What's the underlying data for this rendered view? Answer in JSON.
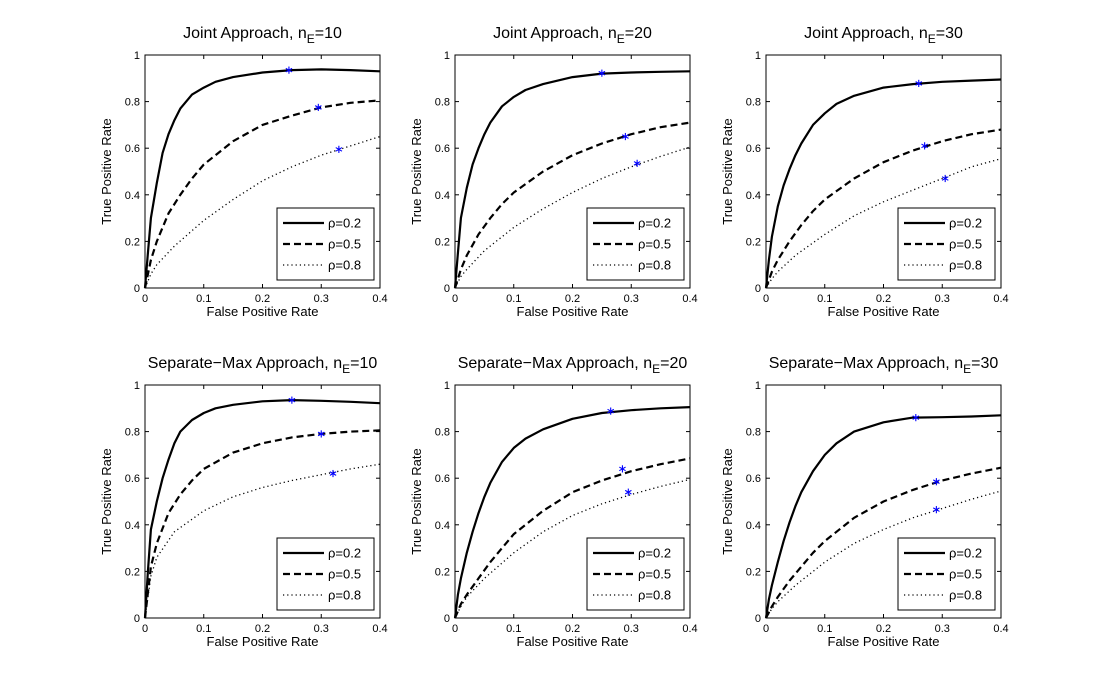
{
  "legend_entries": [
    "ρ=0.2",
    "ρ=0.5",
    "ρ=0.8"
  ],
  "series_colors": {
    "curve": "#000000",
    "marker": "#0000ff"
  },
  "chart_data": [
    {
      "type": "line",
      "title": {
        "main": "Joint Approach, n",
        "sub": "E",
        "suffix": "=10"
      },
      "xlabel": "False Positive Rate",
      "ylabel": "True Positive Rate",
      "xlim": [
        0,
        0.4
      ],
      "ylim": [
        0,
        1
      ],
      "xticks": [
        0,
        0.1,
        0.2,
        0.3,
        0.4
      ],
      "yticks": [
        0,
        0.2,
        0.4,
        0.6,
        0.8,
        1
      ],
      "legend": "bottom-right",
      "grid": false,
      "series": [
        {
          "name": "ρ=0.2",
          "style": "solid",
          "x": [
            0,
            0.005,
            0.01,
            0.02,
            0.03,
            0.04,
            0.05,
            0.06,
            0.08,
            0.1,
            0.12,
            0.15,
            0.2,
            0.25,
            0.3,
            0.35,
            0.4
          ],
          "y": [
            0,
            0.15,
            0.3,
            0.45,
            0.58,
            0.66,
            0.72,
            0.77,
            0.83,
            0.86,
            0.885,
            0.905,
            0.925,
            0.935,
            0.938,
            0.935,
            0.93
          ],
          "marker": [
            0.245,
            0.935
          ]
        },
        {
          "name": "ρ=0.5",
          "style": "dashed",
          "x": [
            0,
            0.01,
            0.02,
            0.04,
            0.06,
            0.08,
            0.1,
            0.15,
            0.2,
            0.25,
            0.3,
            0.35,
            0.4
          ],
          "y": [
            0,
            0.12,
            0.2,
            0.32,
            0.4,
            0.47,
            0.53,
            0.63,
            0.7,
            0.74,
            0.775,
            0.795,
            0.805
          ],
          "marker": [
            0.295,
            0.775
          ]
        },
        {
          "name": "ρ=0.8",
          "style": "dotted",
          "x": [
            0,
            0.01,
            0.02,
            0.05,
            0.1,
            0.15,
            0.2,
            0.25,
            0.3,
            0.35,
            0.4
          ],
          "y": [
            0,
            0.06,
            0.1,
            0.18,
            0.29,
            0.38,
            0.46,
            0.52,
            0.57,
            0.61,
            0.65
          ],
          "marker": [
            0.33,
            0.595
          ]
        }
      ]
    },
    {
      "type": "line",
      "title": {
        "main": "Joint Approach, n",
        "sub": "E",
        "suffix": "=20"
      },
      "xlabel": "False Positive Rate",
      "ylabel": "True Positive Rate",
      "xlim": [
        0,
        0.4
      ],
      "ylim": [
        0,
        1
      ],
      "xticks": [
        0,
        0.1,
        0.2,
        0.3,
        0.4
      ],
      "yticks": [
        0,
        0.2,
        0.4,
        0.6,
        0.8,
        1
      ],
      "legend": "bottom-right",
      "grid": false,
      "series": [
        {
          "name": "ρ=0.2",
          "style": "solid",
          "x": [
            0,
            0.005,
            0.01,
            0.02,
            0.03,
            0.04,
            0.05,
            0.06,
            0.08,
            0.1,
            0.12,
            0.15,
            0.2,
            0.25,
            0.3,
            0.35,
            0.4
          ],
          "y": [
            0,
            0.15,
            0.3,
            0.43,
            0.53,
            0.6,
            0.66,
            0.71,
            0.78,
            0.82,
            0.85,
            0.875,
            0.905,
            0.92,
            0.925,
            0.928,
            0.93
          ],
          "marker": [
            0.25,
            0.922
          ]
        },
        {
          "name": "ρ=0.5",
          "style": "dashed",
          "x": [
            0,
            0.01,
            0.02,
            0.04,
            0.06,
            0.08,
            0.1,
            0.15,
            0.2,
            0.25,
            0.3,
            0.35,
            0.4
          ],
          "y": [
            0,
            0.08,
            0.14,
            0.23,
            0.3,
            0.36,
            0.41,
            0.5,
            0.57,
            0.62,
            0.66,
            0.69,
            0.71
          ],
          "marker": [
            0.29,
            0.65
          ]
        },
        {
          "name": "ρ=0.8",
          "style": "dotted",
          "x": [
            0,
            0.01,
            0.02,
            0.05,
            0.1,
            0.15,
            0.2,
            0.25,
            0.3,
            0.35,
            0.4
          ],
          "y": [
            0,
            0.05,
            0.08,
            0.16,
            0.26,
            0.34,
            0.41,
            0.47,
            0.52,
            0.565,
            0.605
          ],
          "marker": [
            0.31,
            0.535
          ]
        }
      ]
    },
    {
      "type": "line",
      "title": {
        "main": "Joint Approach, n",
        "sub": "E",
        "suffix": "=30"
      },
      "xlabel": "False Positive Rate",
      "ylabel": "True Positive Rate",
      "xlim": [
        0,
        0.4
      ],
      "ylim": [
        0,
        1
      ],
      "xticks": [
        0,
        0.1,
        0.2,
        0.3,
        0.4
      ],
      "yticks": [
        0,
        0.2,
        0.4,
        0.6,
        0.8,
        1
      ],
      "legend": "bottom-right",
      "grid": false,
      "series": [
        {
          "name": "ρ=0.2",
          "style": "solid",
          "x": [
            0,
            0.005,
            0.01,
            0.02,
            0.03,
            0.04,
            0.05,
            0.06,
            0.08,
            0.1,
            0.12,
            0.15,
            0.2,
            0.25,
            0.3,
            0.35,
            0.4
          ],
          "y": [
            0,
            0.12,
            0.22,
            0.35,
            0.44,
            0.51,
            0.57,
            0.62,
            0.7,
            0.75,
            0.79,
            0.825,
            0.86,
            0.875,
            0.885,
            0.89,
            0.895
          ],
          "marker": [
            0.26,
            0.878
          ]
        },
        {
          "name": "ρ=0.5",
          "style": "dashed",
          "x": [
            0,
            0.01,
            0.02,
            0.04,
            0.06,
            0.08,
            0.1,
            0.15,
            0.2,
            0.25,
            0.3,
            0.35,
            0.4
          ],
          "y": [
            0,
            0.07,
            0.12,
            0.2,
            0.27,
            0.33,
            0.38,
            0.47,
            0.54,
            0.59,
            0.63,
            0.66,
            0.68
          ],
          "marker": [
            0.27,
            0.61
          ]
        },
        {
          "name": "ρ=0.8",
          "style": "dotted",
          "x": [
            0,
            0.01,
            0.02,
            0.05,
            0.1,
            0.15,
            0.2,
            0.25,
            0.3,
            0.35,
            0.4
          ],
          "y": [
            0,
            0.04,
            0.07,
            0.14,
            0.23,
            0.31,
            0.37,
            0.42,
            0.47,
            0.52,
            0.555
          ],
          "marker": [
            0.305,
            0.47
          ]
        }
      ]
    },
    {
      "type": "line",
      "title": {
        "main": "Separate−Max Approach, n",
        "sub": "E",
        "suffix": "=10"
      },
      "xlabel": "False Positive Rate",
      "ylabel": "True Positive Rate",
      "xlim": [
        0,
        0.4
      ],
      "ylim": [
        0,
        1
      ],
      "xticks": [
        0,
        0.1,
        0.2,
        0.3,
        0.4
      ],
      "yticks": [
        0,
        0.2,
        0.4,
        0.6,
        0.8,
        1
      ],
      "legend": "bottom-right",
      "grid": false,
      "series": [
        {
          "name": "ρ=0.2",
          "style": "solid",
          "x": [
            0,
            0.005,
            0.01,
            0.02,
            0.03,
            0.04,
            0.05,
            0.06,
            0.08,
            0.1,
            0.12,
            0.15,
            0.2,
            0.25,
            0.3,
            0.35,
            0.4
          ],
          "y": [
            0,
            0.2,
            0.38,
            0.5,
            0.6,
            0.68,
            0.75,
            0.8,
            0.85,
            0.88,
            0.9,
            0.915,
            0.93,
            0.935,
            0.932,
            0.928,
            0.922
          ],
          "marker": [
            0.25,
            0.935
          ]
        },
        {
          "name": "ρ=0.5",
          "style": "dashed",
          "x": [
            0,
            0.01,
            0.02,
            0.04,
            0.06,
            0.08,
            0.1,
            0.15,
            0.2,
            0.25,
            0.3,
            0.35,
            0.4
          ],
          "y": [
            0,
            0.22,
            0.32,
            0.45,
            0.53,
            0.59,
            0.64,
            0.71,
            0.75,
            0.775,
            0.79,
            0.8,
            0.805
          ],
          "marker": [
            0.3,
            0.79
          ]
        },
        {
          "name": "ρ=0.8",
          "style": "dotted",
          "x": [
            0,
            0.01,
            0.02,
            0.05,
            0.1,
            0.15,
            0.2,
            0.25,
            0.3,
            0.35,
            0.4
          ],
          "y": [
            0,
            0.18,
            0.26,
            0.37,
            0.46,
            0.52,
            0.56,
            0.59,
            0.615,
            0.64,
            0.66
          ],
          "marker": [
            0.32,
            0.62
          ]
        }
      ]
    },
    {
      "type": "line",
      "title": {
        "main": "Separate−Max Approach, n",
        "sub": "E",
        "suffix": "=20"
      },
      "xlabel": "False Positive Rate",
      "ylabel": "True Positive Rate",
      "xlim": [
        0,
        0.4
      ],
      "ylim": [
        0,
        1
      ],
      "xticks": [
        0,
        0.1,
        0.2,
        0.3,
        0.4
      ],
      "yticks": [
        0,
        0.2,
        0.4,
        0.6,
        0.8,
        1
      ],
      "legend": "bottom-right",
      "grid": false,
      "series": [
        {
          "name": "ρ=0.2",
          "style": "solid",
          "x": [
            0,
            0.005,
            0.01,
            0.02,
            0.03,
            0.04,
            0.05,
            0.06,
            0.08,
            0.1,
            0.12,
            0.15,
            0.2,
            0.25,
            0.3,
            0.35,
            0.4
          ],
          "y": [
            0,
            0.1,
            0.17,
            0.28,
            0.37,
            0.45,
            0.52,
            0.58,
            0.67,
            0.73,
            0.77,
            0.81,
            0.855,
            0.88,
            0.892,
            0.9,
            0.905
          ],
          "marker": [
            0.265,
            0.888
          ]
        },
        {
          "name": "ρ=0.5",
          "style": "dashed",
          "x": [
            0,
            0.01,
            0.02,
            0.04,
            0.06,
            0.08,
            0.1,
            0.15,
            0.2,
            0.25,
            0.3,
            0.35,
            0.4
          ],
          "y": [
            0,
            0.06,
            0.1,
            0.17,
            0.24,
            0.3,
            0.36,
            0.46,
            0.54,
            0.59,
            0.63,
            0.66,
            0.685
          ],
          "marker": [
            0.285,
            0.64
          ]
        },
        {
          "name": "ρ=0.8",
          "style": "dotted",
          "x": [
            0,
            0.01,
            0.02,
            0.05,
            0.1,
            0.15,
            0.2,
            0.25,
            0.3,
            0.35,
            0.4
          ],
          "y": [
            0,
            0.05,
            0.09,
            0.17,
            0.28,
            0.37,
            0.44,
            0.49,
            0.53,
            0.565,
            0.595
          ],
          "marker": [
            0.295,
            0.54
          ]
        }
      ]
    },
    {
      "type": "line",
      "title": {
        "main": "Separate−Max Approach, n",
        "sub": "E",
        "suffix": "=30"
      },
      "xlabel": "False Positive Rate",
      "ylabel": "True Positive Rate",
      "xlim": [
        0,
        0.4
      ],
      "ylim": [
        0,
        1
      ],
      "xticks": [
        0,
        0.1,
        0.2,
        0.3,
        0.4
      ],
      "yticks": [
        0,
        0.2,
        0.4,
        0.6,
        0.8,
        1
      ],
      "legend": "bottom-right",
      "grid": false,
      "series": [
        {
          "name": "ρ=0.2",
          "style": "solid",
          "x": [
            0,
            0.005,
            0.01,
            0.02,
            0.03,
            0.04,
            0.05,
            0.06,
            0.08,
            0.1,
            0.12,
            0.15,
            0.2,
            0.25,
            0.3,
            0.35,
            0.4
          ],
          "y": [
            0,
            0.08,
            0.14,
            0.24,
            0.33,
            0.41,
            0.48,
            0.54,
            0.63,
            0.7,
            0.75,
            0.8,
            0.84,
            0.86,
            0.862,
            0.865,
            0.87
          ],
          "marker": [
            0.255,
            0.86
          ]
        },
        {
          "name": "ρ=0.5",
          "style": "dashed",
          "x": [
            0,
            0.01,
            0.02,
            0.04,
            0.06,
            0.08,
            0.1,
            0.15,
            0.2,
            0.25,
            0.3,
            0.35,
            0.4
          ],
          "y": [
            0,
            0.05,
            0.09,
            0.16,
            0.22,
            0.28,
            0.33,
            0.43,
            0.5,
            0.55,
            0.59,
            0.62,
            0.645
          ],
          "marker": [
            0.29,
            0.585
          ]
        },
        {
          "name": "ρ=0.8",
          "style": "dotted",
          "x": [
            0,
            0.01,
            0.02,
            0.05,
            0.1,
            0.15,
            0.2,
            0.25,
            0.3,
            0.35,
            0.4
          ],
          "y": [
            0,
            0.04,
            0.07,
            0.14,
            0.24,
            0.32,
            0.38,
            0.43,
            0.47,
            0.51,
            0.545
          ],
          "marker": [
            0.29,
            0.465
          ]
        }
      ]
    }
  ]
}
